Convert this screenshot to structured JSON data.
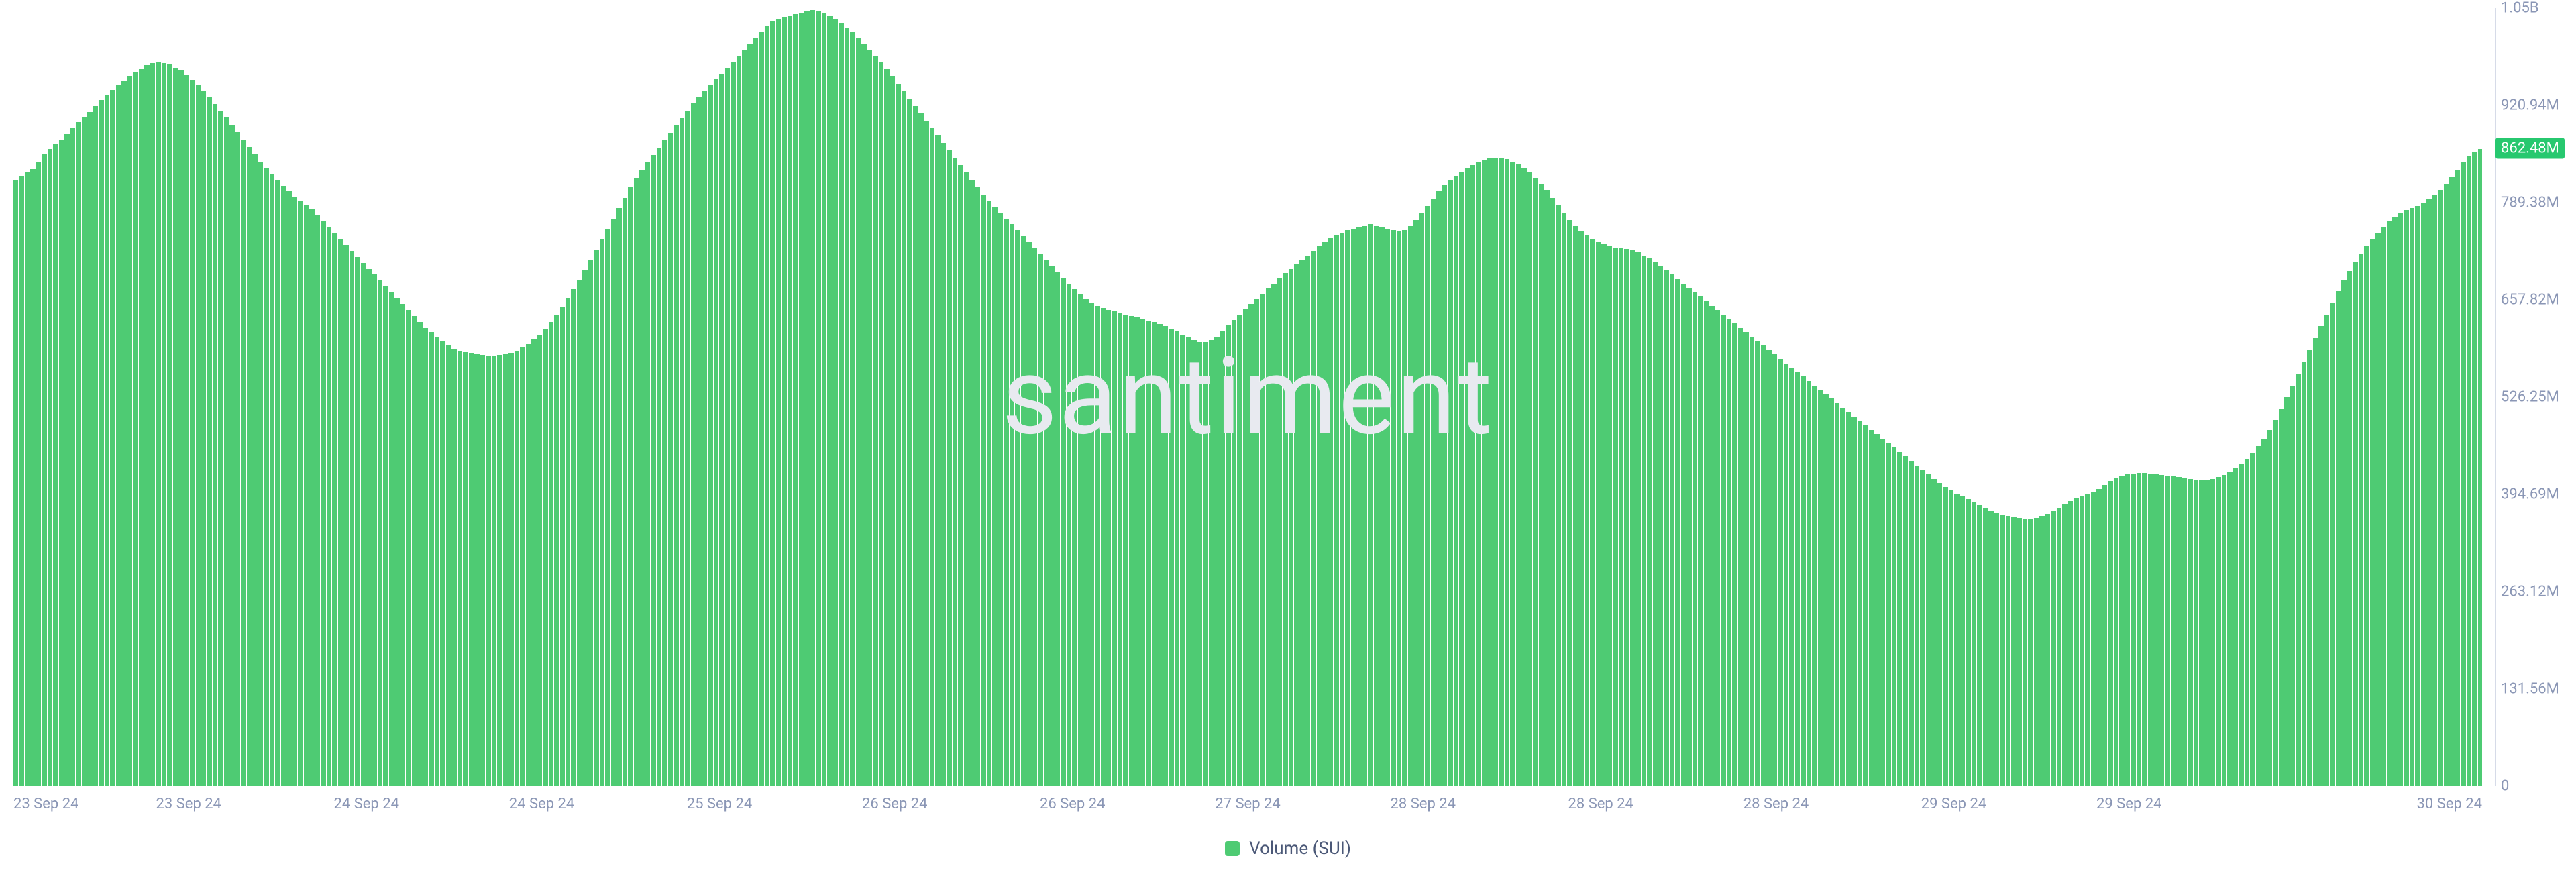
{
  "chart": {
    "type": "bar",
    "watermark_text": "santiment",
    "watermark_color": "#e8eaf0",
    "background_color": "#ffffff",
    "bar_color": "#4ecb73",
    "axis_text_color": "#8a96b5",
    "axis_line_color": "#d6dbe8",
    "current_badge_bg": "#27c86f",
    "current_badge_text": "862.48M",
    "current_value": 862.48,
    "y": {
      "min": 0,
      "max": 1052.5,
      "ticks": [
        {
          "v": 0,
          "label": "0"
        },
        {
          "v": 131.56,
          "label": "131.56M"
        },
        {
          "v": 263.12,
          "label": "263.12M"
        },
        {
          "v": 394.69,
          "label": "394.69M"
        },
        {
          "v": 526.25,
          "label": "526.25M"
        },
        {
          "v": 657.82,
          "label": "657.82M"
        },
        {
          "v": 789.38,
          "label": "789.38M"
        },
        {
          "v": 920.94,
          "label": "920.94M"
        },
        {
          "v": 1052.5,
          "label": "1.05B"
        }
      ]
    },
    "x": {
      "ticks": [
        {
          "pos": 0.0,
          "label": "23 Sep 24",
          "edge": "left"
        },
        {
          "pos": 0.071,
          "label": "23 Sep 24"
        },
        {
          "pos": 0.143,
          "label": "24 Sep 24"
        },
        {
          "pos": 0.214,
          "label": "24 Sep 24"
        },
        {
          "pos": 0.286,
          "label": "25 Sep 24"
        },
        {
          "pos": 0.357,
          "label": "26 Sep 24"
        },
        {
          "pos": 0.429,
          "label": "26 Sep 24"
        },
        {
          "pos": 0.5,
          "label": "27 Sep 24"
        },
        {
          "pos": 0.571,
          "label": "28 Sep 24"
        },
        {
          "pos": 0.643,
          "label": "28 Sep 24"
        },
        {
          "pos": 0.714,
          "label": "28 Sep 24"
        },
        {
          "pos": 0.786,
          "label": "29 Sep 24"
        },
        {
          "pos": 0.857,
          "label": "29 Sep 24"
        },
        {
          "pos": 1.0,
          "label": "30 Sep 24",
          "edge": "right"
        }
      ]
    },
    "legend": {
      "swatch_color": "#4ecb73",
      "label": "Volume (SUI)",
      "label_color": "#4b5877"
    },
    "values": [
      820,
      825,
      830,
      835,
      845,
      855,
      862,
      868,
      875,
      882,
      890,
      898,
      905,
      912,
      920,
      928,
      935,
      942,
      948,
      954,
      960,
      966,
      970,
      975,
      978,
      980,
      978,
      976,
      972,
      968,
      962,
      955,
      948,
      940,
      932,
      923,
      914,
      905,
      895,
      885,
      875,
      865,
      855,
      845,
      836,
      828,
      820,
      812,
      805,
      798,
      792,
      786,
      780,
      772,
      764,
      756,
      748,
      740,
      732,
      724,
      716,
      708,
      700,
      692,
      684,
      676,
      668,
      660,
      652,
      644,
      636,
      628,
      620,
      614,
      608,
      602,
      596,
      592,
      589,
      587,
      585,
      584,
      583,
      582,
      582,
      583,
      584,
      586,
      589,
      593,
      598,
      604,
      611,
      619,
      628,
      638,
      648,
      660,
      672,
      685,
      698,
      712,
      726,
      740,
      754,
      768,
      782,
      796,
      810,
      822,
      833,
      844,
      854,
      864,
      874,
      884,
      894,
      904,
      914,
      924,
      932,
      940,
      948,
      956,
      964,
      972,
      980,
      988,
      996,
      1004,
      1012,
      1020,
      1028,
      1034,
      1038,
      1040,
      1042,
      1044,
      1046,
      1048,
      1050,
      1048,
      1046,
      1042,
      1038,
      1032,
      1026,
      1020,
      1012,
      1004,
      996,
      988,
      980,
      970,
      960,
      950,
      940,
      930,
      920,
      910,
      900,
      890,
      880,
      870,
      860,
      850,
      840,
      830,
      820,
      810,
      800,
      792,
      784,
      776,
      768,
      760,
      752,
      744,
      736,
      728,
      720,
      712,
      704,
      696,
      688,
      680,
      672,
      665,
      659,
      654,
      650,
      647,
      644,
      642,
      640,
      638,
      636,
      634,
      632,
      630,
      628,
      625,
      622,
      619,
      615,
      611,
      607,
      603,
      601,
      601,
      603,
      607,
      615,
      623,
      631,
      638,
      645,
      652,
      659,
      666,
      673,
      680,
      687,
      694,
      700,
      706,
      712,
      718,
      724,
      730,
      736,
      741,
      745,
      749,
      752,
      754,
      756,
      758,
      760,
      758,
      756,
      754,
      752,
      750,
      752,
      758,
      766,
      775,
      785,
      795,
      805,
      813,
      820,
      826,
      831,
      836,
      840,
      844,
      847,
      849,
      850,
      850,
      848,
      845,
      841,
      836,
      830,
      823,
      815,
      806,
      796,
      786,
      776,
      766,
      758,
      751,
      745,
      740,
      736,
      733,
      731,
      729,
      728,
      727,
      725,
      722,
      718,
      714,
      709,
      704,
      698,
      692,
      686,
      680,
      674,
      668,
      662,
      656,
      650,
      644,
      638,
      632,
      626,
      620,
      614,
      608,
      602,
      596,
      590,
      584,
      578,
      572,
      566,
      560,
      554,
      548,
      542,
      536,
      530,
      524,
      518,
      512,
      506,
      500,
      494,
      488,
      482,
      476,
      470,
      464,
      458,
      452,
      446,
      440,
      434,
      428,
      422,
      416,
      410,
      405,
      400,
      396,
      392,
      388,
      384,
      380,
      376,
      372,
      369,
      367,
      365,
      364,
      363,
      362,
      362,
      363,
      365,
      368,
      372,
      377,
      382,
      386,
      389,
      392,
      395,
      398,
      402,
      407,
      413,
      417,
      420,
      422,
      423,
      424,
      424,
      423,
      422,
      421,
      420,
      419,
      418,
      417,
      416,
      415,
      415,
      415,
      416,
      418,
      421,
      425,
      430,
      436,
      443,
      451,
      460,
      470,
      482,
      495,
      510,
      526,
      542,
      558,
      574,
      590,
      606,
      622,
      638,
      654,
      670,
      684,
      697,
      709,
      720,
      730,
      740,
      749,
      757,
      764,
      770,
      775,
      779,
      782,
      785,
      789,
      794,
      800,
      807,
      815,
      824,
      834,
      844,
      852,
      858,
      862
    ]
  }
}
